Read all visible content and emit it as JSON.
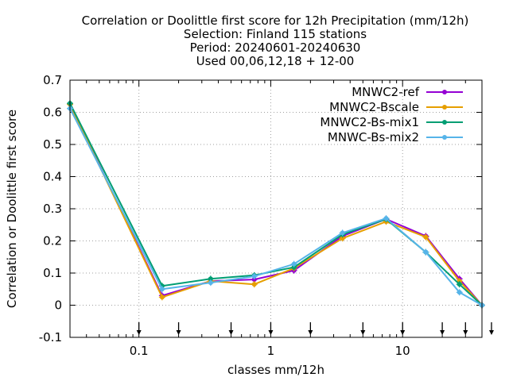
{
  "chart_data": {
    "type": "line",
    "title_lines": [
      "Correlation or Doolittle first score  for 12h Precipitation (mm/12h)",
      "Selection: Finland    115 stations",
      "Period: 20240601-20240630",
      "Used 00,06,12,18 + 12-00"
    ],
    "xlabel": "classes mm/12h",
    "ylabel": "Correlation or Doolittle first score",
    "x_scale": "log",
    "xlim": [
      0.03,
      40
    ],
    "ylim": [
      -0.1,
      0.7
    ],
    "x_ticks": [
      {
        "value": 0.1,
        "label": "0.1"
      },
      {
        "value": 1,
        "label": "1"
      },
      {
        "value": 10,
        "label": "10"
      }
    ],
    "y_ticks": [
      {
        "value": -0.1,
        "label": "-0.1"
      },
      {
        "value": 0,
        "label": "0"
      },
      {
        "value": 0.1,
        "label": "0.1"
      },
      {
        "value": 0.2,
        "label": "0.2"
      },
      {
        "value": 0.3,
        "label": "0.3"
      },
      {
        "value": 0.4,
        "label": "0.4"
      },
      {
        "value": 0.5,
        "label": "0.5"
      },
      {
        "value": 0.6,
        "label": "0.6"
      },
      {
        "value": 0.7,
        "label": "0.7"
      }
    ],
    "grid": true,
    "legend_position": "top-right",
    "class_marks": [
      0.1,
      0.2,
      0.5,
      1,
      2,
      5,
      10,
      20,
      30,
      50
    ],
    "x": [
      0.03,
      0.15,
      0.35,
      0.75,
      1.5,
      3.5,
      7.5,
      15,
      27,
      40
    ],
    "series": [
      {
        "name": "MNWC2-ref",
        "color": "#9400d3",
        "values": [
          0.625,
          0.03,
          0.075,
          0.08,
          0.108,
          0.215,
          0.268,
          0.215,
          0.082,
          0.0
        ]
      },
      {
        "name": "MNWC2-Bscale",
        "color": "#e69f00",
        "values": [
          0.625,
          0.025,
          0.075,
          0.065,
          0.115,
          0.208,
          0.26,
          0.212,
          0.075,
          0.0
        ]
      },
      {
        "name": "MNWC2-Bs-mix1",
        "color": "#009e73",
        "values": [
          0.628,
          0.06,
          0.082,
          0.093,
          0.118,
          0.22,
          0.268,
          0.165,
          0.065,
          0.0
        ]
      },
      {
        "name": "MNWC-Bs-mix2",
        "color": "#56b4e9",
        "values": [
          0.612,
          0.05,
          0.07,
          0.09,
          0.128,
          0.225,
          0.27,
          0.165,
          0.04,
          0.0
        ]
      }
    ]
  }
}
